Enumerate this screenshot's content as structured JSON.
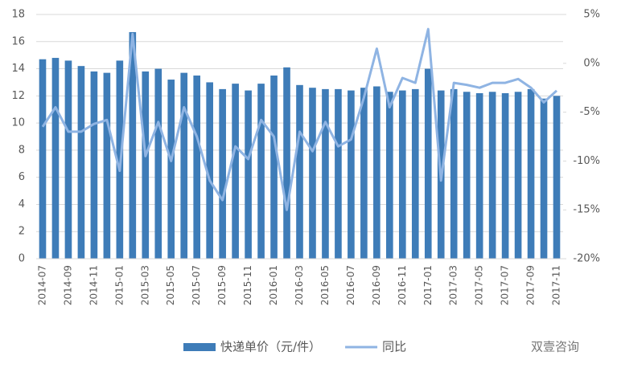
{
  "chart_data": {
    "type": "bar-line",
    "categories": [
      "2014-07",
      null,
      "2014-09",
      null,
      "2014-11",
      null,
      "2015-01",
      null,
      "2015-03",
      null,
      "2015-05",
      null,
      "2015-07",
      null,
      "2015-09",
      null,
      "2015-11",
      null,
      "2016-01",
      null,
      "2016-03",
      null,
      "2016-05",
      null,
      "2016-07",
      null,
      "2016-09",
      null,
      "2016-11",
      null,
      "2017-01",
      null,
      "2017-03",
      null,
      "2017-05",
      null,
      "2017-07",
      null,
      "2017-09",
      null,
      "2017-11"
    ],
    "series": [
      {
        "name": "快递单价（元/件）",
        "type": "bar",
        "color": "#3e7cb8",
        "values": [
          14.7,
          14.8,
          14.6,
          14.2,
          13.8,
          13.7,
          14.6,
          16.7,
          13.8,
          14.0,
          13.2,
          13.7,
          13.5,
          13.0,
          12.5,
          12.9,
          12.4,
          12.9,
          13.5,
          14.1,
          12.8,
          12.6,
          12.5,
          12.5,
          12.4,
          12.6,
          12.7,
          12.3,
          12.4,
          12.5,
          14.0,
          12.4,
          12.5,
          12.3,
          12.2,
          12.3,
          12.2,
          12.3,
          12.5,
          11.8,
          12.0
        ]
      },
      {
        "name": "同比",
        "type": "line",
        "axis": "y2",
        "color": "#8fb4e3",
        "values": [
          -6.5,
          -4.5,
          -7,
          -7,
          -6.2,
          -5.8,
          -11,
          3,
          -9.5,
          -6,
          -10,
          -4.5,
          -7.5,
          -12,
          -14,
          -8.5,
          -9.8,
          -5.8,
          -7.5,
          -15,
          -7,
          -9,
          -6,
          -8.5,
          -7.8,
          -3.5,
          1.5,
          -4.5,
          -1.5,
          -2,
          3.5,
          -12,
          -2,
          -2.2,
          -2.5,
          -2,
          -2,
          -1.6,
          -2.5,
          -4,
          -2.8
        ]
      }
    ],
    "ylim": [
      0,
      18
    ],
    "yticks": [
      0,
      2,
      4,
      6,
      8,
      10,
      12,
      14,
      16,
      18
    ],
    "y2lim": [
      -20,
      5
    ],
    "y2ticks": [
      {
        "value": -20,
        "label": "-20%"
      },
      {
        "value": -15,
        "label": "-15%"
      },
      {
        "value": -10,
        "label": "-10%"
      },
      {
        "value": -5,
        "label": "-5%"
      },
      {
        "value": 0,
        "label": "0%"
      },
      {
        "value": 5,
        "label": "5%"
      }
    ],
    "grid": true,
    "legend": "bottom",
    "watermark": "双壹咨询"
  }
}
